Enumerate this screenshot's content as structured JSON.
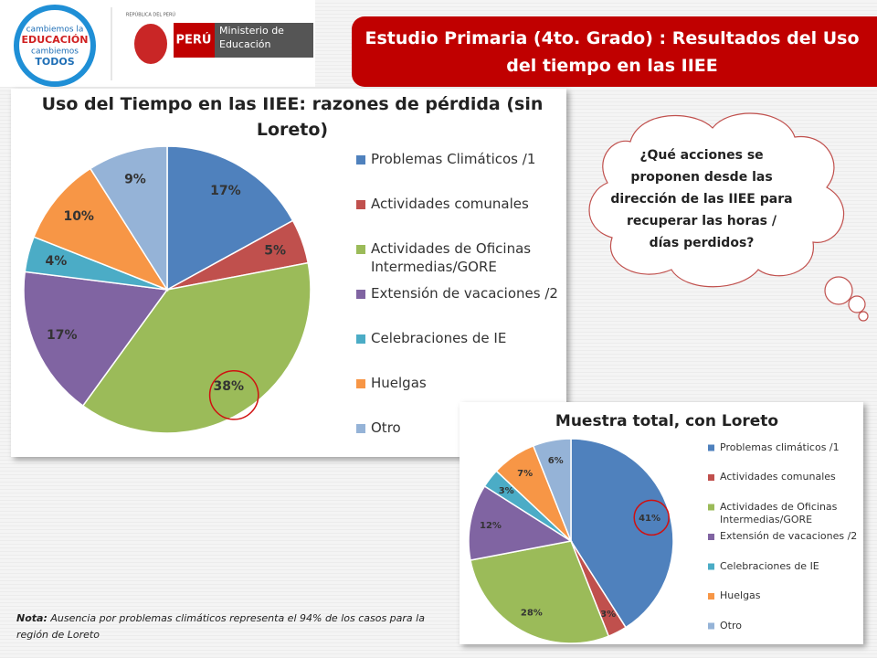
{
  "header": {
    "logo_text": [
      "cambiemos la",
      "EDUCACIÓN",
      "cambiemos",
      "TODOS"
    ],
    "seal_text": "REPÚBLICA DEL PERÚ",
    "country": "PERÚ",
    "ministry": "Ministerio de Educación",
    "title": "Estudio Primaria (4to. Grado) : Resultados del Uso del tiempo en las IIEE"
  },
  "cloud": {
    "text": "¿Qué acciones se proponen desde las dirección de las IIEE para recuperar las horas / días perdidos?"
  },
  "note": {
    "label": "Nota:",
    "text": "Ausencia por problemas climáticos representa el 94% de los casos para la región de Loreto"
  },
  "chart_data": [
    {
      "type": "pie",
      "title": "Uso del Tiempo en las IIEE: razones de pérdida (sin Loreto)",
      "categories": [
        "Problemas Climáticos /1",
        "Actividades comunales",
        "Actividades de Oficinas Intermedias/GORE",
        "Extensión de vacaciones /2",
        "Celebraciones de IE",
        "Huelgas",
        "Otro"
      ],
      "values": [
        17,
        5,
        38,
        17,
        4,
        10,
        9
      ],
      "value_labels": [
        "17%",
        "5%",
        "38%",
        "17%",
        "4%",
        "10%",
        "9%"
      ],
      "colors": [
        "#4f81bd",
        "#c0504d",
        "#9bbb59",
        "#8064a2",
        "#4bacc6",
        "#f79646",
        "#95b3d7"
      ],
      "legend": "right"
    },
    {
      "type": "pie",
      "title": "Muestra total, con Loreto",
      "categories": [
        "Problemas climáticos /1",
        "Actividades comunales",
        "Actividades de Oficinas Intermedias/GORE",
        "Extensión de vacaciones /2",
        "Celebraciones de IE",
        "Huelgas",
        "Otro"
      ],
      "values": [
        41,
        3,
        28,
        12,
        3,
        7,
        6
      ],
      "value_labels": [
        "41%",
        "3%",
        "28%",
        "12%",
        "3%",
        "7%",
        "6%"
      ],
      "colors": [
        "#4f81bd",
        "#c0504d",
        "#9bbb59",
        "#8064a2",
        "#4bacc6",
        "#f79646",
        "#95b3d7"
      ],
      "legend": "right"
    }
  ]
}
